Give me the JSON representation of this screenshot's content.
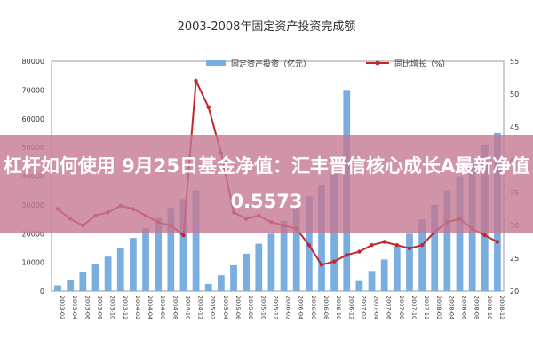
{
  "banner": {
    "text": "杠杆如何使用 9月25日基金净值：汇丰晋信核心成长A最新净值0.5573"
  },
  "chart_data": {
    "type": "bar+line",
    "title": "2003-2008年固定资产投资完成额",
    "xlabel": "",
    "ylabel_left": "",
    "ylabel_right": "",
    "legend_position": "top",
    "grid": false,
    "colors": {
      "bars": "#7aaee0",
      "line": "#c0282e"
    },
    "left_axis": {
      "min": 0,
      "max": 80000,
      "ticks": [
        "0",
        "10000",
        "20000",
        "30000",
        "40000",
        "50000",
        "60000",
        "70000",
        "80000"
      ]
    },
    "right_axis": {
      "min": 20,
      "max": 55,
      "ticks": [
        "20",
        "25",
        "30",
        "35",
        "40",
        "45",
        "50",
        "55"
      ]
    },
    "x_tick_labels": [
      "2003-02",
      "2003-04",
      "2003-06",
      "2003-08",
      "2003-10",
      "2003-12",
      "2004-02",
      "2004-04",
      "2004-06",
      "2004-08",
      "2004-10",
      "2004-12",
      "2005-02",
      "2005-04",
      "2005-06",
      "2005-08",
      "2005-10",
      "2005-12",
      "2006-02",
      "2006-04",
      "2006-06",
      "2006-08",
      "2006-10",
      "2006-12",
      "2007-02",
      "2007-04",
      "2007-06",
      "2007-08",
      "2007-10",
      "2007-12",
      "2008-02",
      "2008-04",
      "2008-06",
      "2008-08",
      "2008-10",
      "2008-12"
    ],
    "series": [
      {
        "name": "固定资产投资（亿元）",
        "axis": "left",
        "values": [
          2000,
          4000,
          6500,
          9500,
          12000,
          15000,
          18500,
          22000,
          25500,
          29000,
          32000,
          35000,
          2500,
          5500,
          9000,
          13000,
          16500,
          20000,
          24500,
          29000,
          33000,
          37000,
          41000,
          70000,
          3500,
          7000,
          11000,
          15500,
          20000,
          25000,
          30000,
          35000,
          40000,
          45000,
          51000,
          55000
        ]
      },
      {
        "name": "同比增长（%）",
        "axis": "right",
        "values": [
          32.5,
          31.0,
          30.0,
          31.5,
          32.0,
          33.0,
          32.5,
          31.5,
          30.5,
          30.0,
          28.5,
          52.0,
          48.0,
          41.0,
          32.0,
          31.0,
          31.5,
          30.5,
          30.0,
          29.5,
          27.0,
          24.0,
          24.5,
          25.5,
          26.0,
          27.0,
          27.5,
          27.0,
          26.5,
          27.0,
          29.0,
          30.5,
          31.0,
          29.5,
          28.5,
          27.5
        ]
      }
    ]
  }
}
